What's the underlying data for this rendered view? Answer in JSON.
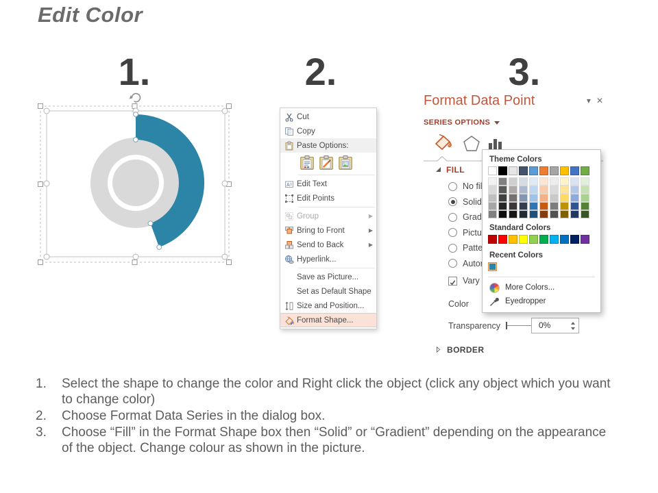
{
  "page": {
    "title": "Edit Color"
  },
  "steps": [
    "1.",
    "2.",
    "3."
  ],
  "chart": {
    "arc_color": "#2C84A6",
    "donut_color": "#D9D9D9"
  },
  "context_menu": {
    "items": [
      {
        "label": "Cut"
      },
      {
        "label": "Copy"
      },
      {
        "label": "Paste Options:"
      },
      {
        "label": "Edit Text"
      },
      {
        "label": "Edit Points"
      },
      {
        "label": "Group"
      },
      {
        "label": "Bring to Front"
      },
      {
        "label": "Send to Back"
      },
      {
        "label": "Hyperlink..."
      },
      {
        "label": "Save as Picture..."
      },
      {
        "label": "Set as Default Shape"
      },
      {
        "label": "Size and Position..."
      },
      {
        "label": "Format Shape..."
      }
    ]
  },
  "format_pane": {
    "title": "Format Data Point",
    "window_buttons": {
      "options": "▾",
      "close": "✕"
    },
    "section_header": "SERIES OPTIONS",
    "fill_header": "FILL",
    "border_header": "BORDER",
    "fill_options": [
      "No fill",
      "Solid fill",
      "Gradient fill",
      "Picture or texture fill",
      "Pattern fill",
      "Automatic"
    ],
    "selected_fill_option": "Solid fill",
    "vary_checkbox_label": "Vary colors by point",
    "vary_checkbox_checked": true,
    "color_label": "Color",
    "transparency_label": "Transparency",
    "transparency_value": "0%"
  },
  "color_picker": {
    "theme_label": "Theme Colors",
    "standard_label": "Standard Colors",
    "recent_label": "Recent Colors",
    "more_label": "More Colors...",
    "eyedropper_label": "Eyedropper",
    "theme_columns": [
      [
        "#FFFFFF",
        "#F2F2F2",
        "#D9D9D9",
        "#BFBFBF",
        "#A6A6A6",
        "#808080"
      ],
      [
        "#000000",
        "#808080",
        "#595959",
        "#404040",
        "#262626",
        "#0D0D0D"
      ],
      [
        "#E7E6E6",
        "#D0CECE",
        "#AEAAAA",
        "#757171",
        "#3A3838",
        "#161616"
      ],
      [
        "#44546A",
        "#D6DCE4",
        "#ACB9CA",
        "#8496B0",
        "#333F4F",
        "#222A35"
      ],
      [
        "#5B9BD5",
        "#DEEBF6",
        "#BDD7EE",
        "#9DC3E6",
        "#2E75B5",
        "#1F4E79"
      ],
      [
        "#ED7D31",
        "#FBE5D5",
        "#F7CBAC",
        "#F4B183",
        "#C55A11",
        "#843C0B"
      ],
      [
        "#A5A5A5",
        "#EDEDED",
        "#DBDBDB",
        "#C9C9C9",
        "#7C7C7C",
        "#525252"
      ],
      [
        "#FFC000",
        "#FFF2CC",
        "#FFE599",
        "#FFD965",
        "#BF9000",
        "#7F6000"
      ],
      [
        "#4472C4",
        "#DAE3F3",
        "#B4C7E7",
        "#8EAADB",
        "#2F5496",
        "#1F3864"
      ],
      [
        "#70AD47",
        "#E2EFDA",
        "#C6E0B4",
        "#A9D18E",
        "#548235",
        "#375623"
      ]
    ],
    "standard_colors": [
      "#C00000",
      "#FF0000",
      "#FFC000",
      "#FFFF00",
      "#92D050",
      "#00B050",
      "#00B0F0",
      "#0070C0",
      "#002060",
      "#7030A0"
    ],
    "recent_colors": [
      "#2C84A6"
    ]
  },
  "instructions": [
    {
      "num": "1.",
      "text": "Select the shape to change the color and Right click the object (click any object which you want to change color)"
    },
    {
      "num": "2.",
      "text": "Choose Format Data Series in the dialog box."
    },
    {
      "num": "3.",
      "text": "Choose “Fill” in the Format Shape box then “Solid” or “Gradient” depending on the appearance of the object. Change colour as shown in the picture."
    }
  ]
}
